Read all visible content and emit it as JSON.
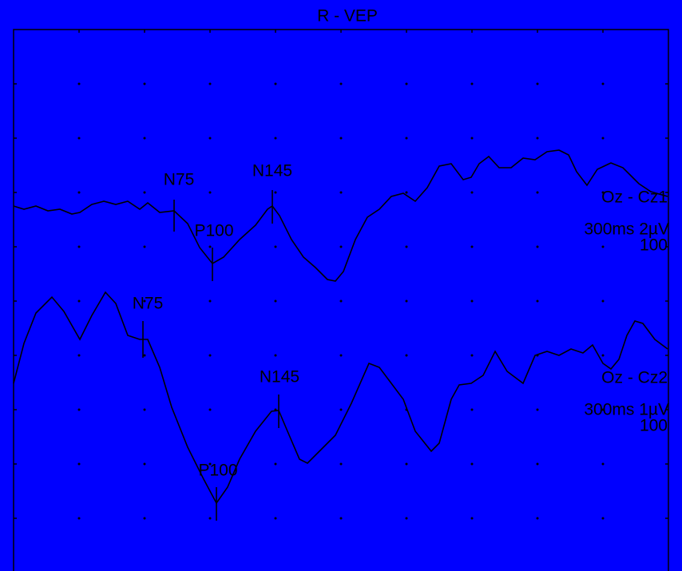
{
  "header": {
    "title": "R  - VEP"
  },
  "traces": [
    {
      "montage": "Oz - Cz1",
      "settings": "300ms 2µV",
      "count": "100",
      "peaks": [
        "N75",
        "P100",
        "N145"
      ]
    },
    {
      "montage": "Oz - Cz2",
      "settings": "300ms 1µV",
      "count": "100",
      "peaks": [
        "N75",
        "P100",
        "N145"
      ]
    }
  ]
}
